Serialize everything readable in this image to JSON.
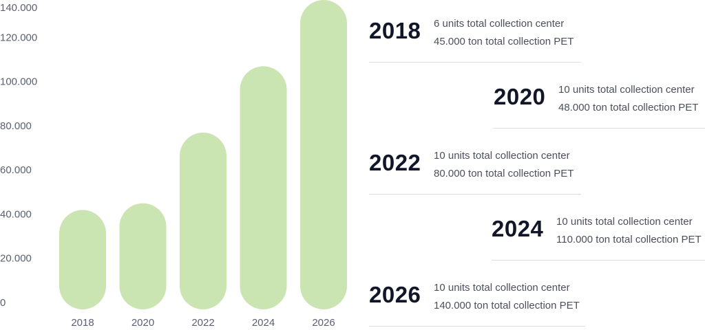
{
  "chart_data": {
    "type": "bar",
    "categories": [
      "2018",
      "2020",
      "2022",
      "2024",
      "2026"
    ],
    "values": [
      45000,
      48000,
      80000,
      110000,
      140000
    ],
    "bar_color": "#cbe5b2",
    "ylim": [
      0,
      140000
    ],
    "yticks": [
      0,
      20000,
      40000,
      60000,
      80000,
      100000,
      120000,
      140000
    ],
    "ytick_labels": [
      "0",
      "20.000",
      "40.000",
      "60.000",
      "80.000",
      "100.000",
      "120.000",
      "140.000"
    ],
    "title": "",
    "xlabel": "",
    "ylabel": "",
    "grid": false
  },
  "entries": [
    {
      "year": "2018",
      "units": "6 units total collection center",
      "tons": "45.000 ton total collection PET"
    },
    {
      "year": "2020",
      "units": "10 units total collection center",
      "tons": "48.000 ton total collection PET"
    },
    {
      "year": "2022",
      "units": "10 units total collection center",
      "tons": "80.000 ton total collection PET"
    },
    {
      "year": "2024",
      "units": "10 units total collection center",
      "tons": "110.000 ton total collection PET"
    },
    {
      "year": "2026",
      "units": "10 units total collection center",
      "tons": "140.000 ton total collection PET"
    }
  ],
  "colors": {
    "year_text": "#111729",
    "body_text": "#4a4f5c",
    "divider": "#d9dce1"
  }
}
